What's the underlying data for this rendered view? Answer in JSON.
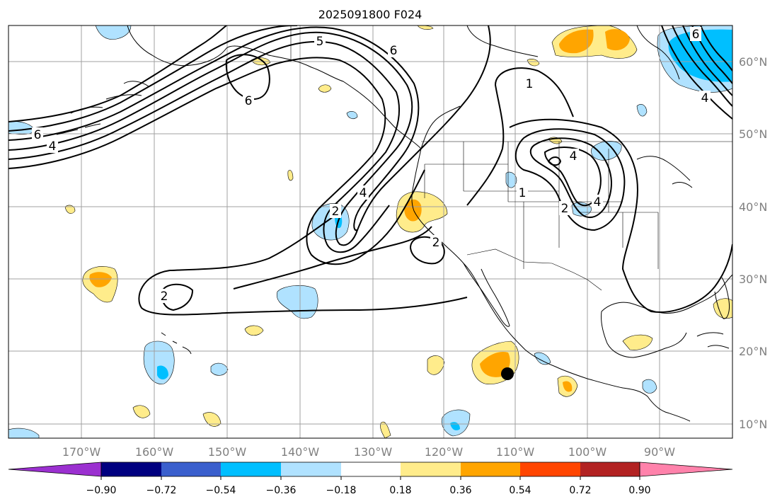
{
  "title": "2025091800 F024",
  "map": {
    "lon_labels": [
      "170°W",
      "160°W",
      "150°W",
      "140°W",
      "130°W",
      "120°W",
      "110°W",
      "100°W",
      "90°W"
    ],
    "lat_labels": [
      "60°N",
      "50°N",
      "40°N",
      "30°N",
      "20°N",
      "10°N"
    ],
    "contour_labels": [
      "5",
      "6",
      "6",
      "6",
      "4",
      "1",
      "4",
      "4",
      "1",
      "2",
      "4",
      "2",
      "2",
      "2",
      "6",
      "4"
    ]
  },
  "colorbar": {
    "tick_labels": [
      "−0.90",
      "−0.72",
      "−0.54",
      "−0.36",
      "−0.18",
      "0.18",
      "0.36",
      "0.54",
      "0.72",
      "0.90"
    ],
    "colors": {
      "under": "#9b30d0",
      "bins": [
        "#000080",
        "#3a5fcd",
        "#00bfff",
        "#b0e2ff",
        "#ffffff",
        "#ffec8b",
        "#ffa500",
        "#ff4500",
        "#b22222"
      ],
      "over": "#ff82ab"
    }
  },
  "colors": {
    "gridline": "#a0a0a0",
    "coastline": "#000000",
    "contour": "#000000",
    "shade_light_blue": "#b0e2ff",
    "shade_blue": "#00bfff",
    "shade_yellow": "#ffec8b",
    "shade_orange": "#ffa500"
  }
}
